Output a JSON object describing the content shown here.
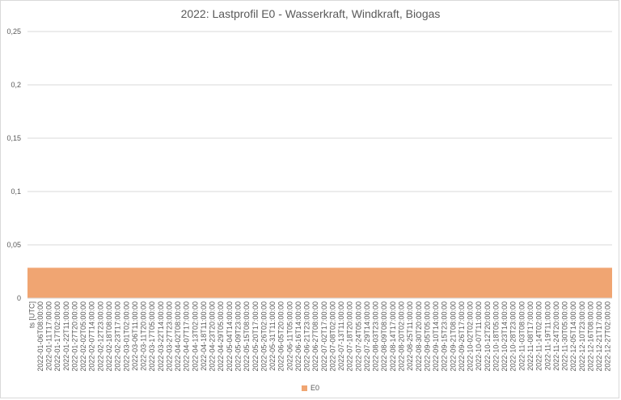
{
  "chart_data": {
    "type": "area",
    "title": "2022: Lastprofil E0 - Wasserkraft, Windkraft, Biogas",
    "xlabel": "ts [UTC]",
    "ylabel": "",
    "ylim": [
      0,
      0.25
    ],
    "y_ticks": [
      "0",
      "0,05",
      "0,1",
      "0,15",
      "0,2",
      "0,25"
    ],
    "grid": true,
    "legend_position": "bottom",
    "color": "#f0a572",
    "x": [
      "2022-01-06T08:00:00",
      "2022-01-11T17:00:00",
      "2022-01-17T02:00:00",
      "2022-01-22T11:00:00",
      "2022-01-27T20:00:00",
      "2022-02-02T05:00:00",
      "2022-02-07T14:00:00",
      "2022-02-12T23:00:00",
      "2022-02-18T08:00:00",
      "2022-02-23T17:00:00",
      "2022-03-01T02:00:00",
      "2022-03-06T11:00:00",
      "2022-03-11T20:00:00",
      "2022-03-17T05:00:00",
      "2022-03-22T14:00:00",
      "2022-03-27T23:00:00",
      "2022-04-02T08:00:00",
      "2022-04-07T17:00:00",
      "2022-04-13T02:00:00",
      "2022-04-18T11:00:00",
      "2022-04-23T20:00:00",
      "2022-04-29T05:00:00",
      "2022-05-04T14:00:00",
      "2022-05-09T23:00:00",
      "2022-05-15T08:00:00",
      "2022-05-20T17:00:00",
      "2022-05-26T02:00:00",
      "2022-05-31T11:00:00",
      "2022-06-05T20:00:00",
      "2022-06-11T05:00:00",
      "2022-06-16T14:00:00",
      "2022-06-21T23:00:00",
      "2022-06-27T08:00:00",
      "2022-07-02T17:00:00",
      "2022-07-08T02:00:00",
      "2022-07-13T11:00:00",
      "2022-07-18T20:00:00",
      "2022-07-24T05:00:00",
      "2022-07-29T14:00:00",
      "2022-08-03T23:00:00",
      "2022-08-09T08:00:00",
      "2022-08-14T17:00:00",
      "2022-08-20T02:00:00",
      "2022-08-25T11:00:00",
      "2022-08-30T20:00:00",
      "2022-09-05T05:00:00",
      "2022-09-10T14:00:00",
      "2022-09-15T23:00:00",
      "2022-09-21T08:00:00",
      "2022-09-26T17:00:00",
      "2022-10-02T02:00:00",
      "2022-10-07T11:00:00",
      "2022-10-12T20:00:00",
      "2022-10-18T05:00:00",
      "2022-10-23T14:00:00",
      "2022-10-28T23:00:00",
      "2022-11-03T08:00:00",
      "2022-11-08T17:00:00",
      "2022-11-14T02:00:00",
      "2022-11-19T11:00:00",
      "2022-11-24T20:00:00",
      "2022-11-30T05:00:00",
      "2022-12-05T14:00:00",
      "2022-12-10T23:00:00",
      "2022-12-16T08:00:00",
      "2022-12-21T17:00:00",
      "2022-12-27T02:00:00"
    ],
    "series": [
      {
        "name": "E0",
        "values": [
          0.0285,
          0.0285,
          0.0285,
          0.0285,
          0.0285,
          0.0285,
          0.0285,
          0.0285,
          0.0285,
          0.0285,
          0.0285,
          0.0285,
          0.0285,
          0.0285,
          0.0285,
          0.0285,
          0.0285,
          0.0285,
          0.0285,
          0.0285,
          0.0285,
          0.0285,
          0.0285,
          0.0285,
          0.0285,
          0.0285,
          0.0285,
          0.0285,
          0.0285,
          0.0285,
          0.0285,
          0.0285,
          0.0285,
          0.0285,
          0.0285,
          0.0285,
          0.0285,
          0.0285,
          0.0285,
          0.0285,
          0.0285,
          0.0285,
          0.0285,
          0.0285,
          0.0285,
          0.0285,
          0.0285,
          0.0285,
          0.0285,
          0.0285,
          0.0285,
          0.0285,
          0.0285,
          0.0285,
          0.0285,
          0.0285,
          0.0285,
          0.0285,
          0.0285,
          0.0285,
          0.0285,
          0.0285,
          0.0285,
          0.0285,
          0.0285,
          0.0285,
          0.0285
        ]
      }
    ]
  }
}
